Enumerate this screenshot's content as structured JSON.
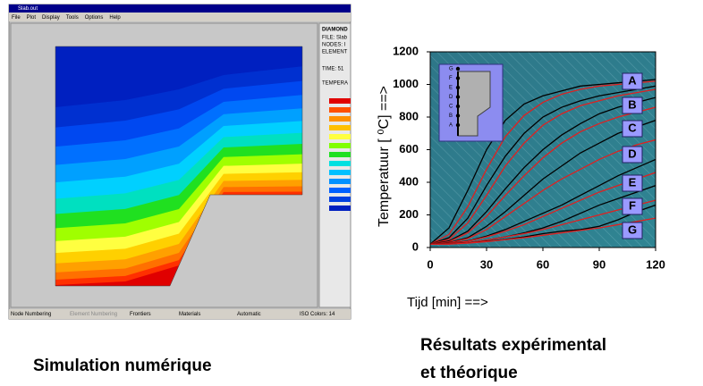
{
  "screenshot": {
    "window_title": "Slab.out",
    "menu": [
      "File",
      "Plot",
      "Display",
      "Tools",
      "Options",
      "Help"
    ],
    "panel": [
      "DIAMOND",
      "FILE: Slab",
      "NODES: I",
      "ELEMENT",
      "TIME: 51",
      "TEMPERA"
    ],
    "status_bar": [
      "Node Numbering",
      "Element Numbering",
      "Frontiers",
      "Materials",
      "Automatic",
      "ISO Colors: 14"
    ]
  },
  "captions": {
    "left": "Simulation numérique",
    "right": [
      "Résultats expérimental",
      "et théorique"
    ]
  },
  "chart_data": {
    "type": "line",
    "ylabel": "Temperatuur [ ⁰C] ==>",
    "xlabel": "Tijd [min] ==>",
    "x": [
      0,
      10,
      20,
      30,
      40,
      50,
      60,
      70,
      80,
      90,
      100,
      110,
      120
    ],
    "xlim": [
      0,
      120
    ],
    "xticks": [
      0,
      30,
      60,
      90,
      120
    ],
    "ylim": [
      0,
      1200
    ],
    "yticks": [
      0,
      200,
      400,
      600,
      800,
      1000,
      1200
    ],
    "curve_labels": [
      "A",
      "B",
      "C",
      "D",
      "E",
      "F",
      "G"
    ],
    "inset_labels": [
      "G",
      "F",
      "E",
      "D",
      "C",
      "B",
      "A"
    ],
    "series": [
      {
        "color": "#000000",
        "values": [
          20,
          120,
          350,
          600,
          780,
          880,
          930,
          960,
          990,
          1000,
          1010,
          1020,
          1030
        ]
      },
      {
        "color": "#e02020",
        "values": [
          20,
          80,
          250,
          480,
          680,
          810,
          890,
          940,
          970,
          990,
          1000,
          1010,
          1020
        ]
      },
      {
        "color": "#000000",
        "values": [
          20,
          60,
          180,
          380,
          560,
          700,
          800,
          860,
          900,
          930,
          950,
          970,
          990
        ]
      },
      {
        "color": "#e02020",
        "values": [
          20,
          50,
          150,
          320,
          500,
          640,
          750,
          820,
          870,
          900,
          930,
          950,
          970
        ]
      },
      {
        "color": "#000000",
        "values": [
          20,
          40,
          100,
          220,
          360,
          490,
          600,
          690,
          760,
          820,
          860,
          890,
          920
        ]
      },
      {
        "color": "#e02020",
        "values": [
          20,
          35,
          90,
          190,
          320,
          440,
          550,
          640,
          710,
          760,
          800,
          830,
          860
        ]
      },
      {
        "color": "#000000",
        "values": [
          20,
          30,
          60,
          130,
          220,
          320,
          420,
          500,
          580,
          640,
          700,
          740,
          780
        ]
      },
      {
        "color": "#e02020",
        "values": [
          20,
          28,
          55,
          110,
          190,
          270,
          350,
          420,
          480,
          540,
          590,
          630,
          660
        ]
      },
      {
        "color": "#000000",
        "values": [
          20,
          25,
          40,
          70,
          110,
          160,
          210,
          260,
          320,
          380,
          440,
          490,
          540
        ]
      },
      {
        "color": "#e02020",
        "values": [
          20,
          24,
          38,
          65,
          100,
          140,
          190,
          240,
          290,
          340,
          380,
          420,
          460
        ]
      },
      {
        "color": "#000000",
        "values": [
          20,
          22,
          30,
          45,
          65,
          90,
          120,
          160,
          210,
          260,
          300,
          340,
          380
        ]
      },
      {
        "color": "#e02020",
        "values": [
          20,
          22,
          30,
          45,
          65,
          85,
          110,
          140,
          170,
          200,
          230,
          260,
          290
        ]
      },
      {
        "color": "#000000",
        "values": [
          20,
          22,
          28,
          38,
          50,
          65,
          85,
          100,
          110,
          130,
          170,
          220,
          260
        ]
      },
      {
        "color": "#e02020",
        "values": [
          20,
          21,
          27,
          36,
          48,
          60,
          75,
          90,
          105,
          120,
          140,
          160,
          180
        ]
      }
    ]
  }
}
